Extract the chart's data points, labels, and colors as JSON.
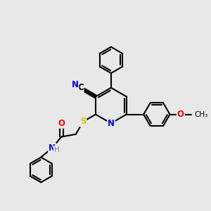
{
  "bg_color": "#e8e8e8",
  "bond_color": "#000000",
  "bond_width": 1.5,
  "atom_colors": {
    "N": "#0000ff",
    "O": "#ff0000",
    "S": "#cccc00",
    "C": "#000000",
    "H": "#888888"
  },
  "font_size": 8.5,
  "fig_size": [
    3.0,
    3.0
  ],
  "dpi": 100
}
